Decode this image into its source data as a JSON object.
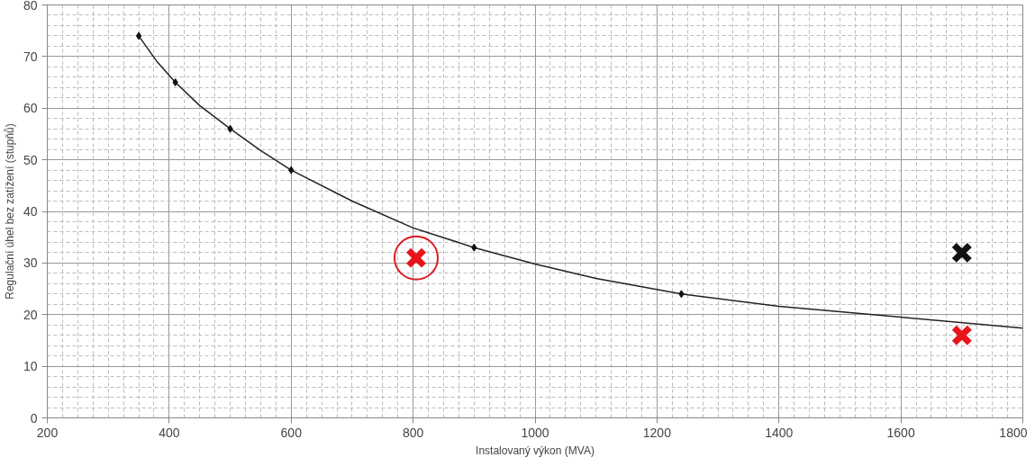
{
  "chart_data": {
    "type": "line",
    "xlabel": "Instalovaný výkon (MVA)",
    "ylabel": "Regulační úhel bez zatížení (stupňů)",
    "xlim": [
      200,
      1800
    ],
    "xticks": [
      200,
      400,
      600,
      800,
      1000,
      1200,
      1400,
      1600,
      1800
    ],
    "ylim": [
      0,
      80
    ],
    "yticks": [
      0,
      10,
      20,
      30,
      40,
      50,
      60,
      70,
      80
    ],
    "grid": true,
    "series": [
      {
        "color": "#222222",
        "marker": "none",
        "x": [
          350,
          380,
          410,
          450,
          500,
          550,
          600,
          700,
          800,
          900,
          1000,
          1100,
          1240,
          1400,
          1600,
          1800
        ],
        "values": [
          74,
          69,
          65,
          60.5,
          56,
          51.8,
          48,
          42,
          36.8,
          33,
          29.8,
          27,
          24,
          21.6,
          19.5,
          17.4
        ]
      },
      {
        "type": "scatter",
        "color": "#dd1a22",
        "marker": "circle",
        "x": [
          805
        ],
        "values": [
          31
        ]
      },
      {
        "type": "scatter",
        "color": "#111111",
        "marker": "diamond",
        "x": [
          350,
          410,
          500,
          600,
          900,
          1240
        ],
        "values": [
          74,
          65,
          56,
          48,
          33,
          24
        ]
      },
      {
        "type": "scatter",
        "color": "#e8141c",
        "marker": "cross",
        "x": [
          805,
          1700
        ],
        "values": [
          31,
          16
        ]
      },
      {
        "type": "scatter",
        "color": "#111111",
        "marker": "cross",
        "x": [
          1700
        ],
        "values": [
          32
        ]
      }
    ]
  }
}
